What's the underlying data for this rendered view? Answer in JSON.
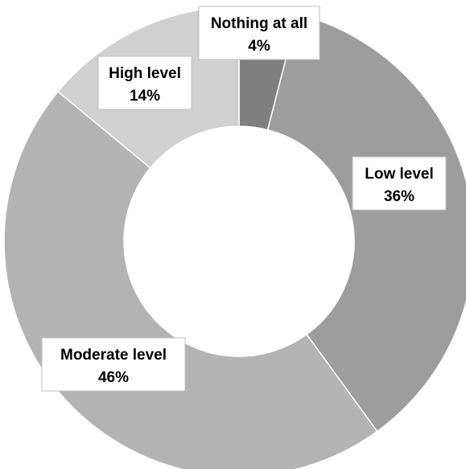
{
  "chart_data": {
    "type": "pie",
    "donut": true,
    "title": "",
    "start_angle_deg": 0,
    "direction": "clockwise",
    "slices": [
      {
        "label": "Nothing at all",
        "value": 4,
        "value_label": "4%",
        "color": "#7f7f7f"
      },
      {
        "label": "Low level",
        "value": 36,
        "value_label": "36%",
        "color": "#9d9d9d"
      },
      {
        "label": "Moderate level",
        "value": 46,
        "value_label": "46%",
        "color": "#b3b3b3"
      },
      {
        "label": "High level",
        "value": 14,
        "value_label": "14%",
        "color": "#d0d0d0"
      }
    ],
    "label_style": "boxed callouts with category name and percentage",
    "legend": "none"
  }
}
